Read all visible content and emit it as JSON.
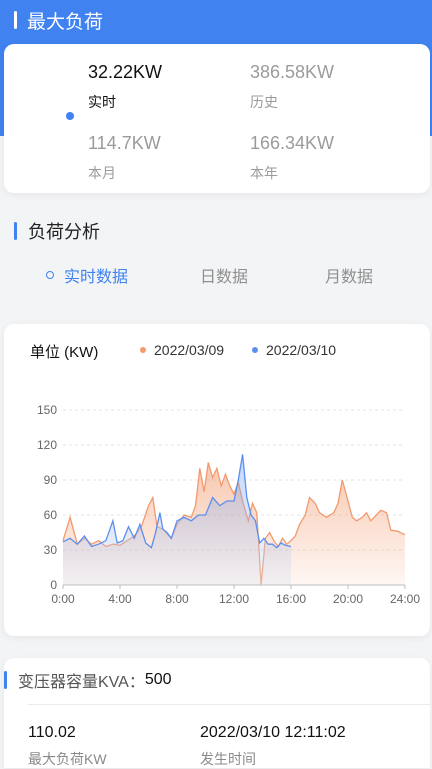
{
  "page_title": "最大负荷",
  "max_load": {
    "stats": [
      {
        "value": "32.22KW",
        "label": "实时",
        "active": true
      },
      {
        "value": "386.58KW",
        "label": "历史",
        "active": false
      },
      {
        "value": "114.7KW",
        "label": "本月",
        "active": false
      },
      {
        "value": "166.34KW",
        "label": "本年",
        "active": false
      }
    ]
  },
  "load_analysis": {
    "title": "负荷分析",
    "tabs": [
      {
        "label": "实时数据",
        "active": true
      },
      {
        "label": "日数据",
        "active": false
      },
      {
        "label": "月数据",
        "active": false
      }
    ]
  },
  "chart_header": {
    "unit": "单位 (KW)"
  },
  "colors": {
    "accent": "#3f82f0",
    "series_orange": "#f29a6e",
    "series_blue": "#5b8ff0"
  },
  "chart_data": {
    "type": "area",
    "ylim": [
      0,
      150
    ],
    "y_ticks": [
      "0",
      "30",
      "60",
      "90",
      "120",
      "150"
    ],
    "x_ticks": [
      "0:00",
      "4:00",
      "8:00",
      "12:00",
      "16:00",
      "20:00",
      "24:00"
    ],
    "xlim": [
      0,
      24
    ],
    "series": [
      {
        "name": "2022/03/09",
        "color": "#f29a6e",
        "points": [
          [
            0,
            38
          ],
          [
            0.5,
            58
          ],
          [
            1,
            35
          ],
          [
            1.5,
            40
          ],
          [
            2,
            35
          ],
          [
            2.5,
            38
          ],
          [
            3,
            33
          ],
          [
            3.5,
            35
          ],
          [
            4,
            34
          ],
          [
            4.5,
            38
          ],
          [
            5,
            42
          ],
          [
            5.5,
            50
          ],
          [
            6,
            68
          ],
          [
            6.3,
            75
          ],
          [
            6.6,
            50
          ],
          [
            7,
            48
          ],
          [
            7.3,
            44
          ],
          [
            7.6,
            40
          ],
          [
            8,
            52
          ],
          [
            8.5,
            60
          ],
          [
            9,
            58
          ],
          [
            9.3,
            68
          ],
          [
            9.6,
            100
          ],
          [
            9.9,
            80
          ],
          [
            10.2,
            105
          ],
          [
            10.5,
            92
          ],
          [
            10.8,
            100
          ],
          [
            11.1,
            85
          ],
          [
            11.4,
            95
          ],
          [
            11.7,
            85
          ],
          [
            12,
            78
          ],
          [
            12.3,
            88
          ],
          [
            12.6,
            72
          ],
          [
            13,
            55
          ],
          [
            13.3,
            70
          ],
          [
            13.6,
            62
          ],
          [
            13.9,
            0
          ],
          [
            14.2,
            40
          ],
          [
            14.5,
            45
          ],
          [
            14.8,
            38
          ],
          [
            15.1,
            33
          ],
          [
            15.4,
            40
          ],
          [
            15.7,
            35
          ],
          [
            16,
            38
          ],
          [
            16.3,
            42
          ],
          [
            16.6,
            52
          ],
          [
            17,
            60
          ],
          [
            17.3,
            75
          ],
          [
            17.7,
            70
          ],
          [
            18,
            62
          ],
          [
            18.5,
            58
          ],
          [
            19,
            62
          ],
          [
            19.3,
            70
          ],
          [
            19.6,
            90
          ],
          [
            20,
            72
          ],
          [
            20.3,
            58
          ],
          [
            20.6,
            55
          ],
          [
            21,
            58
          ],
          [
            21.3,
            62
          ],
          [
            21.6,
            55
          ],
          [
            22,
            60
          ],
          [
            22.3,
            64
          ],
          [
            22.7,
            62
          ],
          [
            23,
            47
          ],
          [
            23.5,
            46
          ],
          [
            24,
            43
          ]
        ]
      },
      {
        "name": "2022/03/10",
        "color": "#5b8ff0",
        "points": [
          [
            0,
            37
          ],
          [
            0.5,
            40
          ],
          [
            1,
            35
          ],
          [
            1.5,
            42
          ],
          [
            2,
            33
          ],
          [
            2.5,
            35
          ],
          [
            3,
            38
          ],
          [
            3.5,
            55
          ],
          [
            3.8,
            36
          ],
          [
            4.2,
            38
          ],
          [
            4.6,
            50
          ],
          [
            5,
            40
          ],
          [
            5.4,
            52
          ],
          [
            5.8,
            36
          ],
          [
            6.2,
            32
          ],
          [
            6.5,
            45
          ],
          [
            6.8,
            62
          ],
          [
            7,
            48
          ],
          [
            7.3,
            45
          ],
          [
            7.6,
            40
          ],
          [
            8,
            55
          ],
          [
            8.5,
            58
          ],
          [
            9,
            55
          ],
          [
            9.5,
            60
          ],
          [
            10,
            60
          ],
          [
            10.5,
            75
          ],
          [
            11,
            68
          ],
          [
            11.5,
            72
          ],
          [
            12,
            72
          ],
          [
            12.3,
            90
          ],
          [
            12.6,
            112
          ],
          [
            12.9,
            75
          ],
          [
            13.2,
            60
          ],
          [
            13.5,
            55
          ],
          [
            13.8,
            36
          ],
          [
            14.1,
            40
          ],
          [
            14.4,
            35
          ],
          [
            14.7,
            35
          ],
          [
            15,
            32
          ],
          [
            15.3,
            36
          ],
          [
            15.6,
            34
          ],
          [
            16,
            33
          ]
        ]
      }
    ]
  },
  "transformer": {
    "label": "变压器容量KVA：",
    "value": "500",
    "max_value": "110.02",
    "max_label": "最大负荷KW",
    "time_value": "2022/03/10 12:11:02",
    "time_label": "发生时间"
  }
}
